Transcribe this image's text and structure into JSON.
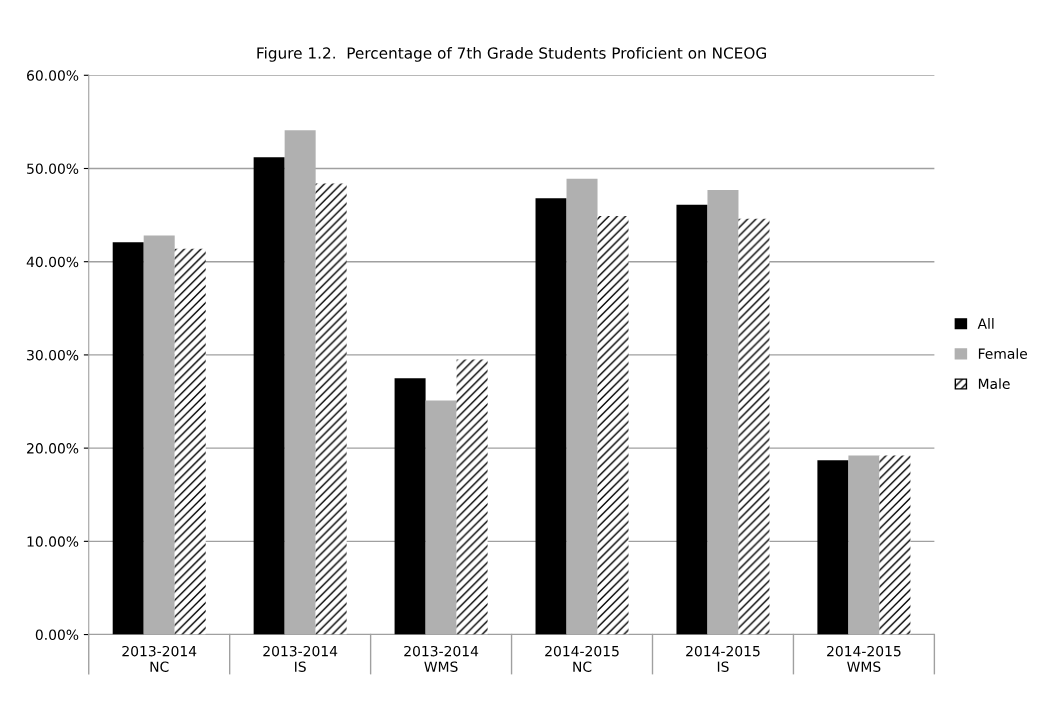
{
  "chart_data": {
    "type": "bar",
    "title": "Figure 1.2.  Percentage of 7th Grade Students Proficient on NCEOG",
    "categories": [
      "2013-2014\nNC",
      "2013-2014\nIS",
      "2013-2014\nWMS",
      "2014-2015\nNC",
      "2014-2015\nIS",
      "2014-2015\nWMS"
    ],
    "series": [
      {
        "name": "All",
        "color": "#000000",
        "values": [
          42.1,
          51.2,
          27.5,
          46.8,
          46.1,
          18.7
        ]
      },
      {
        "name": "Female",
        "color": "#b0b0b0",
        "values": [
          42.8,
          54.1,
          25.1,
          48.9,
          47.7,
          19.2
        ]
      },
      {
        "name": "Male",
        "color": "#ffffff",
        "values": [
          41.4,
          48.4,
          29.5,
          44.9,
          44.6,
          19.2
        ]
      }
    ],
    "ylim": [
      0,
      60
    ],
    "yticks": [
      {
        "value": 0,
        "label": "0.00%"
      },
      {
        "value": 10,
        "label": "10.00%"
      },
      {
        "value": 20,
        "label": "20.00%"
      },
      {
        "value": 30,
        "label": "30.00%"
      },
      {
        "value": 40,
        "label": "40.00%"
      },
      {
        "value": 50,
        "label": "50.00%"
      },
      {
        "value": 60,
        "label": "60.00%"
      }
    ],
    "grid": "y",
    "legend": "right"
  }
}
